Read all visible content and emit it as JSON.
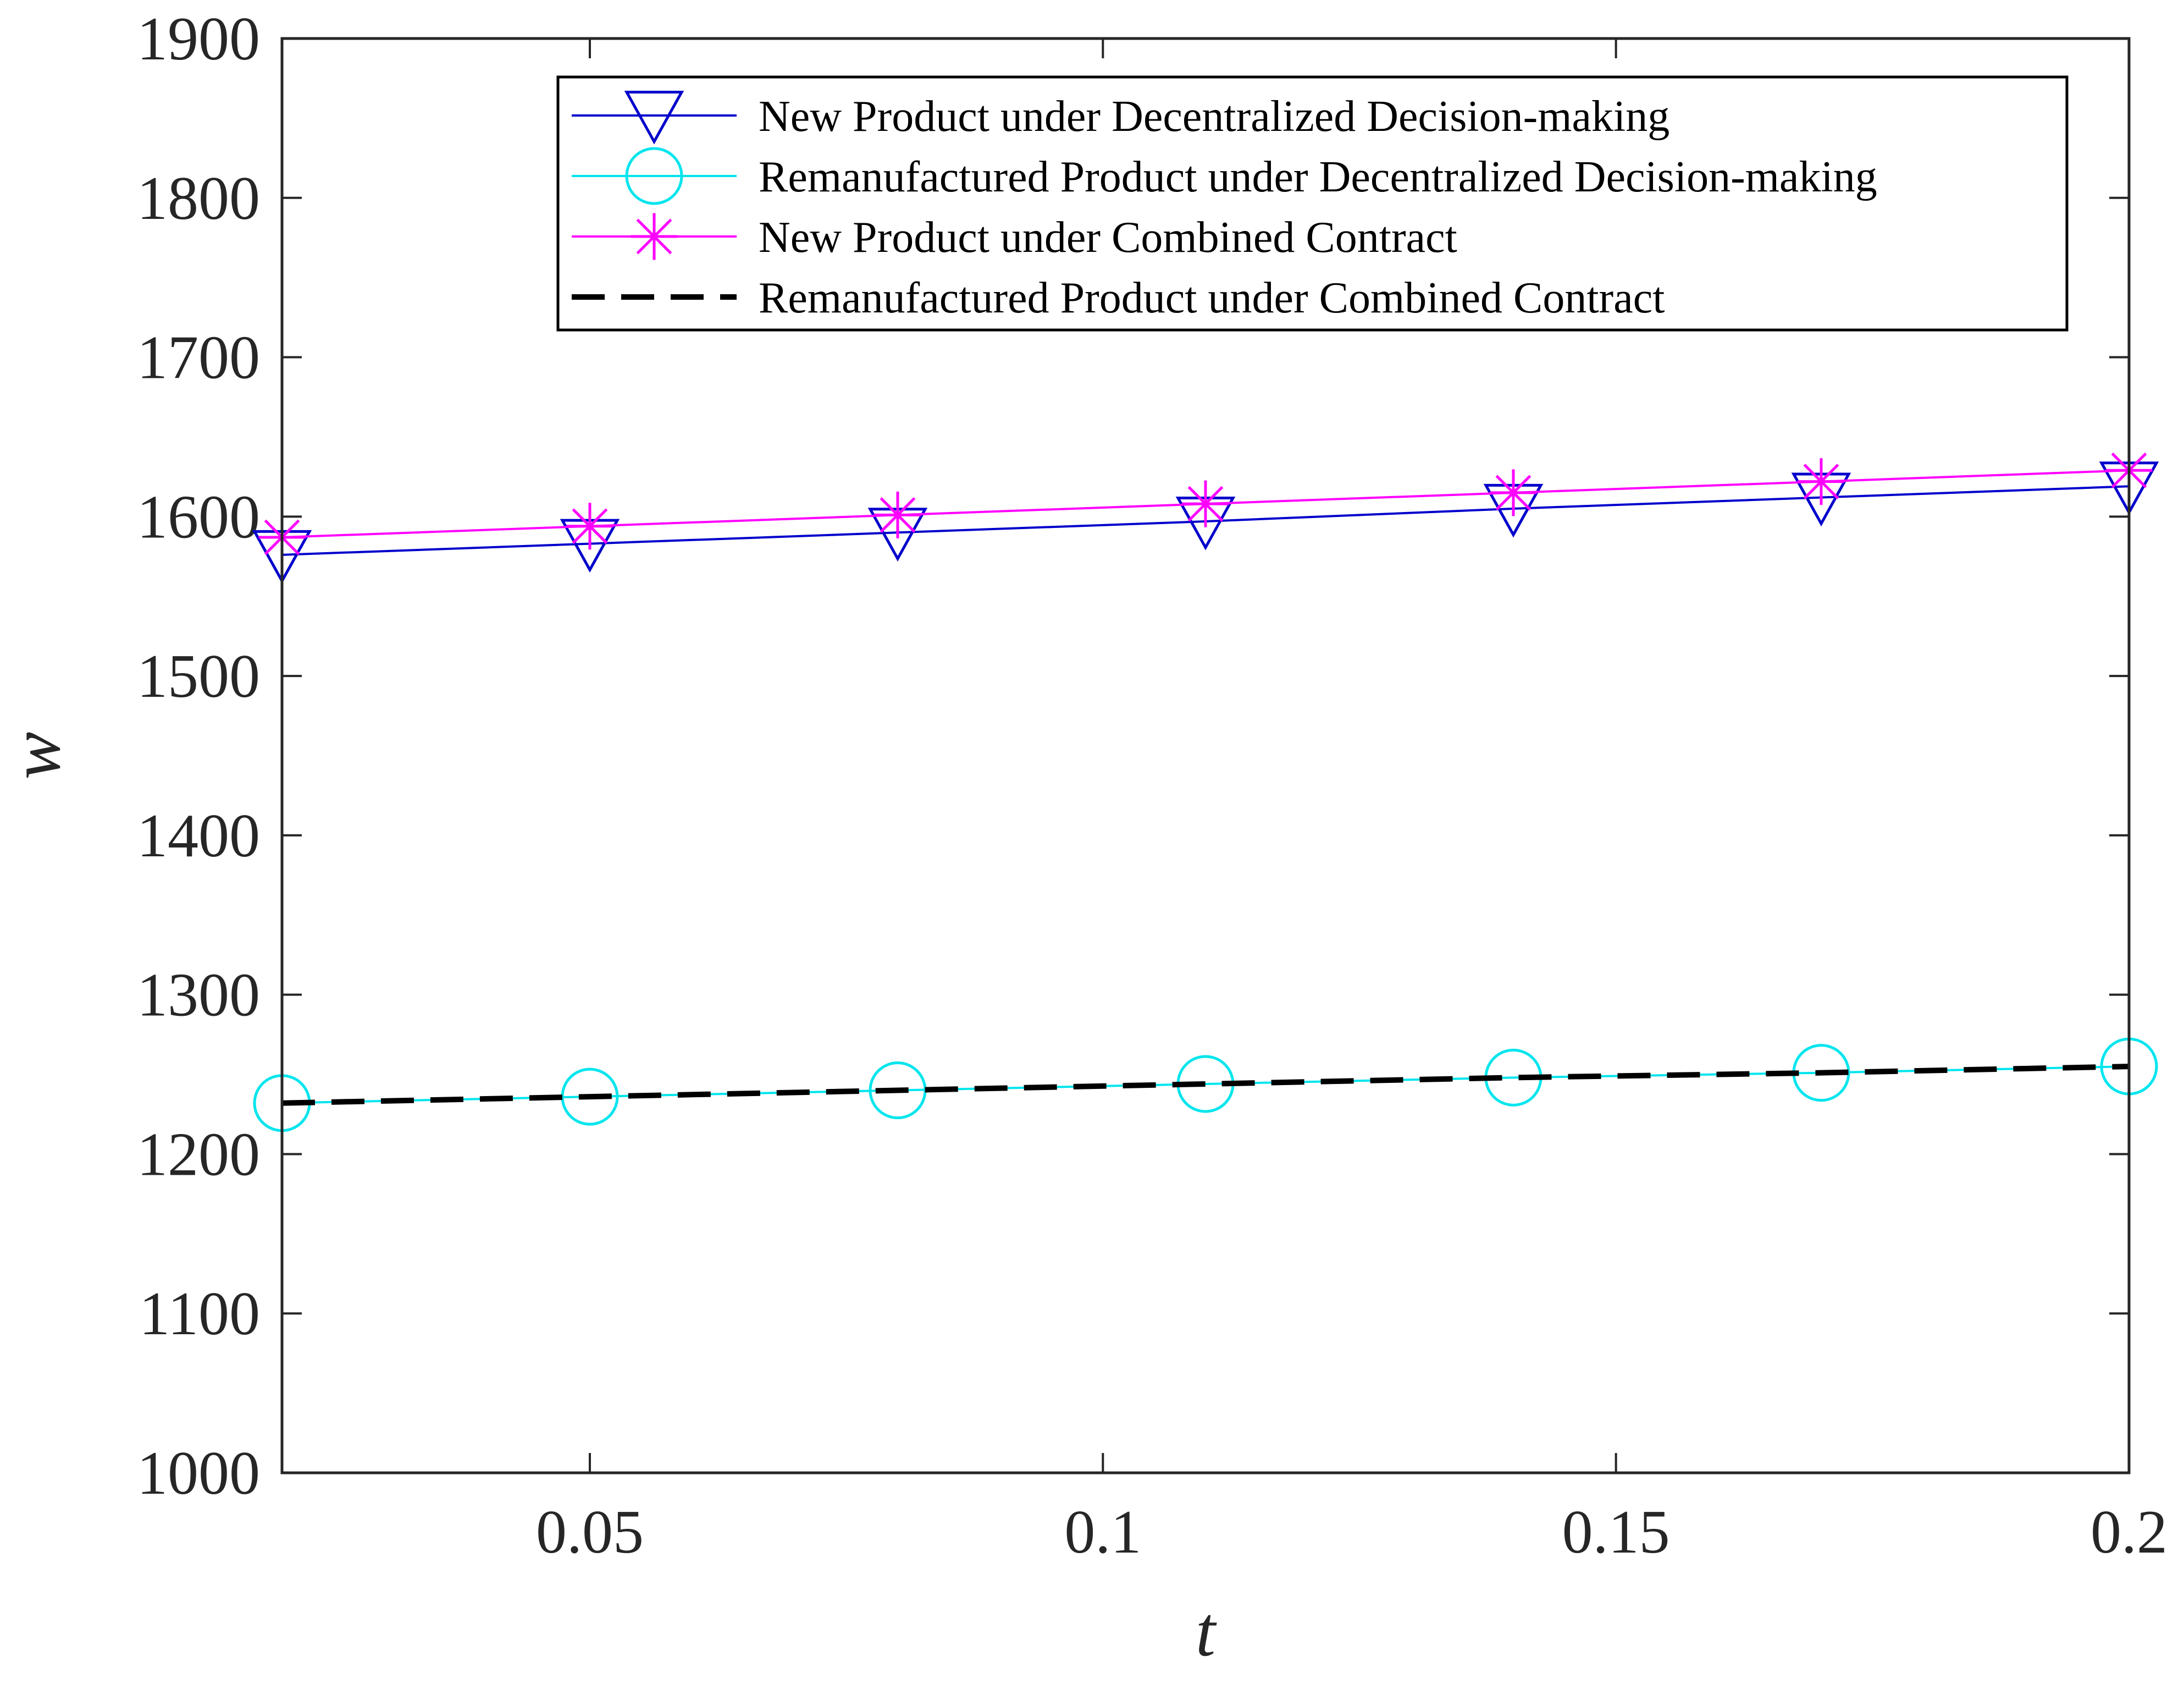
{
  "chart_data": {
    "type": "line",
    "title": "",
    "xlabel": "t",
    "ylabel": "w",
    "xlim": [
      0.02,
      0.2
    ],
    "ylim": [
      1000,
      1900
    ],
    "xticks": [
      0.05,
      0.1,
      0.15,
      0.2
    ],
    "xtick_labels": [
      "0.05",
      "0.1",
      "0.15",
      "0.2"
    ],
    "yticks": [
      1000,
      1100,
      1200,
      1300,
      1400,
      1500,
      1600,
      1700,
      1800,
      1900
    ],
    "ytick_labels": [
      "1000",
      "1100",
      "1200",
      "1300",
      "1400",
      "1500",
      "1600",
      "1700",
      "1800",
      "1900"
    ],
    "grid": false,
    "legend_position": "top-right",
    "x": [
      0.02,
      0.05,
      0.08,
      0.11,
      0.14,
      0.17,
      0.2
    ],
    "series": [
      {
        "name": "New Product under Decentralized Decision-making",
        "values": [
          1576,
          1583,
          1590,
          1597,
          1605,
          1612,
          1619
        ],
        "color": "#0000cc",
        "marker": "triangle-down",
        "line_style": "solid"
      },
      {
        "name": "Remanufactured Product under Decentralized Decision-making",
        "values": [
          1232,
          1236,
          1240,
          1244,
          1248,
          1251,
          1255
        ],
        "color": "#00e5ee",
        "marker": "circle",
        "line_style": "solid"
      },
      {
        "name": "New Product under Combined Contract",
        "values": [
          1587,
          1594,
          1601,
          1608,
          1615,
          1622,
          1629
        ],
        "color": "#ff00ff",
        "marker": "asterisk",
        "line_style": "solid"
      },
      {
        "name": "Remanufactured Product under Combined Contract",
        "values": [
          1232,
          1236,
          1240,
          1244,
          1248,
          1251,
          1255
        ],
        "color": "#000000",
        "marker": "none",
        "line_style": "dashed"
      }
    ]
  }
}
